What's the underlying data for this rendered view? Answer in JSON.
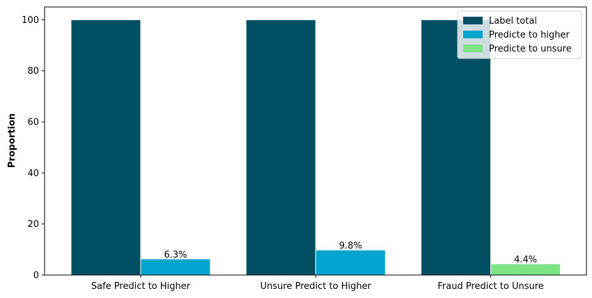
{
  "chart_data": {
    "type": "bar",
    "categories": [
      "Safe Predict to Higher",
      "Unsure Predict to Higher",
      "Fraud Predict to Unsure"
    ],
    "series": [
      {
        "name": "Label total",
        "values": [
          100,
          100,
          100
        ],
        "color": "#004f63"
      },
      {
        "name": "Predicte to higher",
        "values": [
          6.3,
          9.8,
          null
        ],
        "color": "#00a5cf"
      },
      {
        "name": "Predicte to unsure",
        "values": [
          null,
          null,
          4.4
        ],
        "color": "#7de385"
      }
    ],
    "data_labels": [
      "6.3%",
      "9.8%",
      "4.4%"
    ],
    "title": "",
    "xlabel": "",
    "ylabel": "Proportion",
    "ylim": [
      0,
      105
    ],
    "yticks": [
      0,
      20,
      40,
      60,
      80,
      100
    ],
    "grid": false,
    "legend_position": "top-right"
  }
}
